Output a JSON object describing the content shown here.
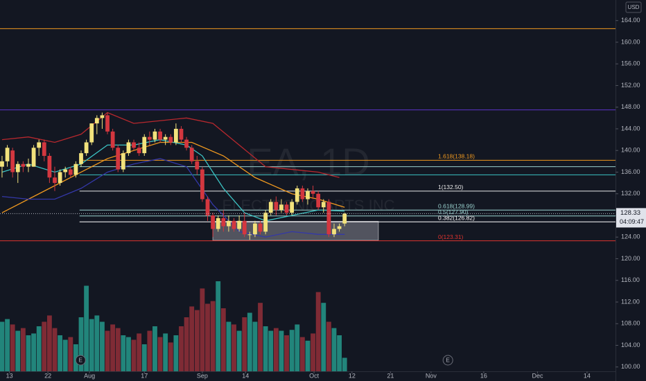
{
  "chart_data": {
    "type": "candlestick",
    "symbol_watermark": "EA, 1D",
    "name_watermark": "ELECTRONIC ARTS INC",
    "currency": "USD",
    "ylim": [
      99.2,
      167.8
    ],
    "yticks": [
      {
        "value": 100,
        "label": "100.00"
      },
      {
        "value": 104,
        "label": "104.00"
      },
      {
        "value": 108,
        "label": "108.00"
      },
      {
        "value": 112,
        "label": "112.00"
      },
      {
        "value": 116,
        "label": "116.00"
      },
      {
        "value": 120,
        "label": "120.00"
      },
      {
        "value": 124,
        "label": "124.00"
      },
      {
        "value": 128,
        "label": "128.00"
      },
      {
        "value": 132,
        "label": "132.00"
      },
      {
        "value": 136,
        "label": "136.00"
      },
      {
        "value": 140,
        "label": "140.00"
      },
      {
        "value": 144,
        "label": "144.00"
      },
      {
        "value": 148,
        "label": "148.00"
      },
      {
        "value": 152,
        "label": "152.00"
      },
      {
        "value": 156,
        "label": "156.00"
      },
      {
        "value": 160,
        "label": "160.00"
      },
      {
        "value": 164,
        "label": "164.00"
      }
    ],
    "xlim": [
      -0.39,
      116.4
    ],
    "xticks": [
      {
        "value": 1.4,
        "label": "13"
      },
      {
        "value": 8.7,
        "label": "22"
      },
      {
        "value": 16.6,
        "label": "Aug"
      },
      {
        "value": 27,
        "label": "17"
      },
      {
        "value": 38,
        "label": "Sep"
      },
      {
        "value": 46.2,
        "label": "14"
      },
      {
        "value": 59.2,
        "label": "Oct"
      },
      {
        "value": 66.4,
        "label": "12"
      },
      {
        "value": 73.7,
        "label": "21"
      },
      {
        "value": 81.4,
        "label": "Nov"
      },
      {
        "value": 91.4,
        "label": "16"
      },
      {
        "value": 101.6,
        "label": "Dec"
      },
      {
        "value": 111,
        "label": "14"
      }
    ],
    "up_color": "#f2e27c",
    "down_color": "#d3373f",
    "candles": {
      "open": [
        137,
        138,
        140,
        136,
        137.5,
        137,
        137,
        140.5,
        141.5,
        139,
        135,
        134,
        136,
        136.5,
        135.5,
        137.5,
        139.5,
        141.5,
        145,
        146,
        146.5,
        143.5,
        140.5,
        136.5,
        139.5,
        141.5,
        140.5,
        139.5,
        142.5,
        142,
        143.5,
        142,
        142.5,
        141.5,
        144,
        142,
        140.5,
        138,
        136.5,
        131,
        128,
        125.5,
        127.5,
        126,
        127,
        125.5,
        127,
        124.5,
        124.5,
        126.5,
        125,
        128.5,
        130.5,
        129,
        130,
        128.5,
        130.5,
        133,
        131,
        132.5,
        132,
        129.5,
        130.5,
        124.5,
        125.5,
        126.5
      ],
      "high": [
        139,
        141,
        140.5,
        138,
        138,
        138.5,
        141,
        142,
        142,
        139.5,
        137,
        136.5,
        137,
        137,
        138,
        140,
        142,
        145,
        146.5,
        147,
        147,
        144,
        141,
        140,
        142,
        142,
        141.5,
        143,
        143.5,
        144,
        144,
        143,
        143,
        145,
        144.5,
        142.5,
        141,
        139,
        137,
        131.5,
        128.5,
        128,
        129,
        128,
        127.5,
        128,
        128.5,
        125,
        127,
        127,
        129,
        131,
        131.5,
        131,
        130.5,
        131,
        133.5,
        133.5,
        133,
        133.5,
        132.5,
        131,
        131,
        126.5,
        126.5,
        128.5
      ],
      "low": [
        135,
        137,
        135,
        134,
        136,
        136,
        137,
        139,
        138,
        134,
        132.5,
        133.5,
        135,
        135,
        135,
        137,
        139,
        141,
        143,
        144,
        143,
        140,
        136,
        136,
        139,
        140,
        139,
        139,
        141,
        141.5,
        141.5,
        141,
        141,
        141,
        141.5,
        140,
        137.5,
        135.5,
        130.5,
        127,
        124,
        125,
        125,
        125,
        125,
        125,
        124,
        123.5,
        124,
        124.5,
        124.5,
        128,
        128,
        128.5,
        128,
        128,
        130,
        130.5,
        130,
        131,
        129,
        128.5,
        124,
        124,
        125,
        126
      ],
      "close": [
        138,
        140.5,
        136,
        137.5,
        137,
        137.5,
        140.5,
        141.5,
        139,
        135,
        134,
        136,
        136.5,
        135.5,
        137.5,
        139.5,
        141.5,
        145,
        146,
        146.5,
        143.5,
        140.5,
        136.5,
        139.5,
        141.5,
        140.5,
        139.5,
        142.5,
        142,
        143.5,
        142,
        142.5,
        141.5,
        144,
        142,
        140.5,
        138,
        136.5,
        131,
        128,
        125.5,
        127.5,
        126,
        127,
        125.5,
        127,
        124.5,
        124.5,
        126.5,
        125,
        128.5,
        130.5,
        129,
        130,
        128.5,
        130.5,
        133,
        131,
        132.5,
        132,
        129.5,
        130.5,
        124.5,
        125.5,
        126,
        128.33
      ]
    },
    "volume": {
      "ylim": [
        0,
        100
      ],
      "values": [
        55,
        58,
        52,
        45,
        48,
        40,
        42,
        50,
        55,
        62,
        48,
        40,
        35,
        38,
        30,
        60,
        95,
        58,
        62,
        55,
        45,
        52,
        48,
        40,
        38,
        35,
        42,
        30,
        45,
        50,
        38,
        42,
        32,
        40,
        50,
        60,
        72,
        68,
        92,
        75,
        78,
        100,
        70,
        55,
        52,
        45,
        60,
        65,
        55,
        76,
        50,
        45,
        48,
        45,
        40,
        46,
        52,
        38,
        34,
        42,
        88,
        76,
        55,
        48,
        40,
        15
      ]
    },
    "lines": [
      {
        "color": "#f29a1f",
        "x": [
          0,
          10,
          20,
          30,
          36,
          42,
          48,
          55,
          60,
          65
        ],
        "values": [
          128.5,
          133.5,
          138.5,
          141.5,
          141.5,
          139,
          135,
          132,
          131,
          129.5
        ]
      },
      {
        "color": "#3cc4c4",
        "x": [
          0,
          5,
          10,
          15,
          20,
          25,
          30,
          35,
          38,
          42,
          46,
          50,
          55,
          60,
          65
        ],
        "values": [
          136,
          137.5,
          136,
          137.5,
          141,
          141,
          142,
          141,
          139,
          133,
          128.5,
          127,
          128,
          129,
          128.8
        ]
      },
      {
        "color": "#b8282e",
        "x": [
          0,
          5,
          10,
          15,
          20,
          25,
          30,
          35,
          40,
          45,
          50,
          55,
          60,
          64
        ],
        "values": [
          142,
          142.5,
          141.5,
          143,
          147,
          145,
          145.5,
          146,
          145,
          141,
          137,
          136.5,
          136,
          135
        ]
      },
      {
        "color": "#3438a8",
        "x": [
          0,
          5,
          10,
          15,
          20,
          25,
          30,
          35,
          40,
          45,
          50,
          55,
          60,
          65
        ],
        "values": [
          131.5,
          131,
          131,
          133,
          136,
          137.5,
          138.5,
          137,
          130,
          125,
          124,
          125,
          124.5,
          124.5
        ]
      }
    ],
    "levels": [
      {
        "value": 162.5,
        "color": "#f29a1f"
      },
      {
        "value": 147.5,
        "color": "#5b35c9"
      },
      {
        "value": 138.18,
        "color": "#f29a1f",
        "label": "1.618(138.18)",
        "from": 14.7
      },
      {
        "value": 137.0,
        "color": "#9bd3d0",
        "from": 14.7
      },
      {
        "value": 135.5,
        "color": "#3cc4c4",
        "from": 14.7
      },
      {
        "value": 132.5,
        "color": "#e8e8e8",
        "label": "1(132.50)",
        "from": 14.7
      },
      {
        "value": 128.99,
        "color": "#9bd3d0",
        "label": "0.618(128.99)",
        "from": 14.7
      },
      {
        "value": 127.9,
        "color": "#9bd3d0",
        "label": "0.5(127.90)",
        "from": 14.7
      },
      {
        "value": 126.82,
        "color": "#ffffff",
        "label": "0.382(126.82)",
        "from": 14.7
      },
      {
        "value": 123.31,
        "color": "#e0342f",
        "label": "0(123.31)"
      }
    ],
    "range_box": {
      "x": [
        40.0,
        71.4
      ],
      "y": [
        123.4,
        126.9
      ]
    },
    "earnings": {
      "x": [
        14.9,
        84.6
      ],
      "label": "E"
    },
    "last_price": {
      "value": 128.33,
      "label": "128.33"
    },
    "countdown": "04:09:47"
  }
}
